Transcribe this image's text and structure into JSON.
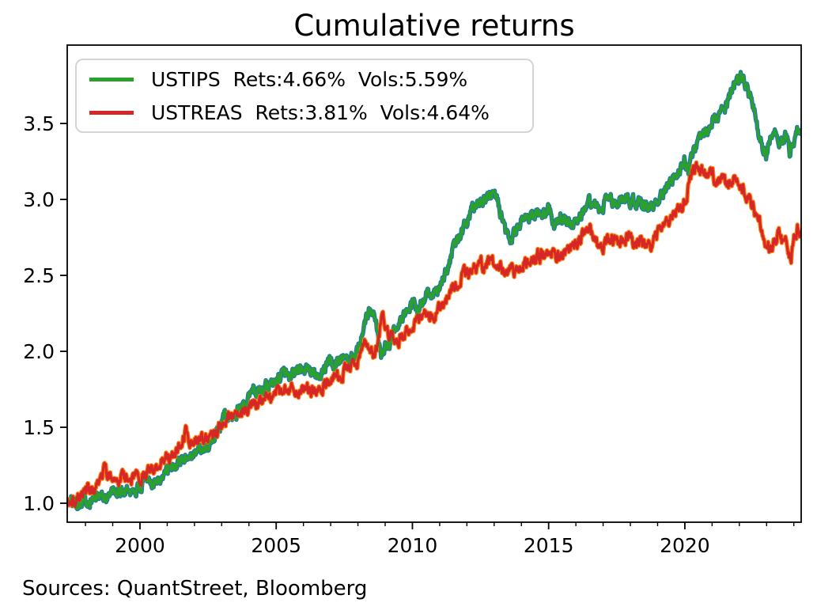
{
  "chart_data": {
    "type": "line",
    "title": "Cumulative returns",
    "xlabel": "",
    "ylabel": "",
    "legend_position": "upper left",
    "axes": {
      "xlim": [
        1997.33,
        2024.27
      ],
      "ylim": [
        0.875,
        4.016
      ],
      "xticks": [
        2000,
        2005,
        2010,
        2015,
        2020
      ],
      "xtick_labels": [
        "2000",
        "2005",
        "2010",
        "2015",
        "2020"
      ],
      "minor_xtick_start": 1998,
      "minor_xtick_end": 2024,
      "yticks": [
        1.0,
        1.5,
        2.0,
        2.5,
        3.0,
        3.5
      ],
      "ytick_labels": [
        "1.0",
        "1.5",
        "2.0",
        "2.5",
        "3.0",
        "3.5"
      ],
      "grid": false
    },
    "series": [
      {
        "name": "USTIPS",
        "legend_label": "USTIPS  Rets:4.66%  Vols:5.59%",
        "rets": "4.66%",
        "vols": "5.59%",
        "color": "#2ca02c",
        "underlay_color": "#1f77b4",
        "points": [
          [
            1997.33,
            1.0
          ],
          [
            1997.6,
            1.01
          ],
          [
            1997.9,
            1.02
          ],
          [
            1998.2,
            1.03
          ],
          [
            1998.5,
            1.045
          ],
          [
            1998.8,
            1.05
          ],
          [
            1999.0,
            1.065
          ],
          [
            1999.3,
            1.075
          ],
          [
            1999.6,
            1.085
          ],
          [
            1999.9,
            1.09
          ],
          [
            2000.0,
            1.1
          ],
          [
            2000.3,
            1.13
          ],
          [
            2000.6,
            1.16
          ],
          [
            2000.9,
            1.19
          ],
          [
            2001.2,
            1.23
          ],
          [
            2001.5,
            1.28
          ],
          [
            2001.8,
            1.32
          ],
          [
            2002.0,
            1.33
          ],
          [
            2002.3,
            1.36
          ],
          [
            2002.6,
            1.4
          ],
          [
            2002.8,
            1.45
          ],
          [
            2003.0,
            1.52
          ],
          [
            2003.2,
            1.58
          ],
          [
            2003.4,
            1.55
          ],
          [
            2003.6,
            1.62
          ],
          [
            2003.8,
            1.67
          ],
          [
            2004.0,
            1.72
          ],
          [
            2004.3,
            1.75
          ],
          [
            2004.6,
            1.77
          ],
          [
            2004.9,
            1.81
          ],
          [
            2005.1,
            1.84
          ],
          [
            2005.4,
            1.86
          ],
          [
            2005.7,
            1.87
          ],
          [
            2006.0,
            1.88
          ],
          [
            2006.3,
            1.87
          ],
          [
            2006.5,
            1.86
          ],
          [
            2006.8,
            1.9
          ],
          [
            2007.0,
            1.93
          ],
          [
            2007.3,
            1.94
          ],
          [
            2007.6,
            1.96
          ],
          [
            2007.9,
            1.99
          ],
          [
            2008.1,
            2.08
          ],
          [
            2008.25,
            2.2
          ],
          [
            2008.4,
            2.26
          ],
          [
            2008.55,
            2.21
          ],
          [
            2008.65,
            2.24
          ],
          [
            2008.75,
            2.08
          ],
          [
            2008.85,
            1.94
          ],
          [
            2009.0,
            2.02
          ],
          [
            2009.2,
            2.08
          ],
          [
            2009.4,
            2.16
          ],
          [
            2009.6,
            2.21
          ],
          [
            2009.8,
            2.24
          ],
          [
            2010.0,
            2.3
          ],
          [
            2010.2,
            2.28
          ],
          [
            2010.5,
            2.36
          ],
          [
            2010.8,
            2.39
          ],
          [
            2011.0,
            2.42
          ],
          [
            2011.2,
            2.5
          ],
          [
            2011.5,
            2.68
          ],
          [
            2011.7,
            2.74
          ],
          [
            2011.9,
            2.82
          ],
          [
            2012.1,
            2.9
          ],
          [
            2012.3,
            2.94
          ],
          [
            2012.5,
            2.97
          ],
          [
            2012.7,
            3.0
          ],
          [
            2012.9,
            3.05
          ],
          [
            2013.1,
            3.0
          ],
          [
            2013.3,
            2.86
          ],
          [
            2013.45,
            2.76
          ],
          [
            2013.65,
            2.74
          ],
          [
            2013.85,
            2.82
          ],
          [
            2014.0,
            2.87
          ],
          [
            2014.2,
            2.9
          ],
          [
            2014.45,
            2.87
          ],
          [
            2014.7,
            2.91
          ],
          [
            2015.0,
            2.93
          ],
          [
            2015.2,
            2.86
          ],
          [
            2015.45,
            2.89
          ],
          [
            2015.7,
            2.84
          ],
          [
            2015.9,
            2.83
          ],
          [
            2016.1,
            2.87
          ],
          [
            2016.3,
            2.93
          ],
          [
            2016.55,
            2.98
          ],
          [
            2016.75,
            2.94
          ],
          [
            2016.9,
            2.93
          ],
          [
            2017.1,
            2.97
          ],
          [
            2017.4,
            2.99
          ],
          [
            2017.7,
            3.01
          ],
          [
            2018.0,
            3.0
          ],
          [
            2018.2,
            2.97
          ],
          [
            2018.5,
            2.98
          ],
          [
            2018.8,
            2.94
          ],
          [
            2019.0,
            2.99
          ],
          [
            2019.3,
            3.08
          ],
          [
            2019.6,
            3.17
          ],
          [
            2019.8,
            3.2
          ],
          [
            2020.0,
            3.27
          ],
          [
            2020.15,
            3.17
          ],
          [
            2020.3,
            3.33
          ],
          [
            2020.5,
            3.38
          ],
          [
            2020.7,
            3.41
          ],
          [
            2020.95,
            3.47
          ],
          [
            2021.05,
            3.54
          ],
          [
            2021.15,
            3.5
          ],
          [
            2021.35,
            3.57
          ],
          [
            2021.55,
            3.63
          ],
          [
            2021.75,
            3.71
          ],
          [
            2021.95,
            3.8
          ],
          [
            2022.05,
            3.82
          ],
          [
            2022.15,
            3.77
          ],
          [
            2022.3,
            3.71
          ],
          [
            2022.45,
            3.64
          ],
          [
            2022.6,
            3.57
          ],
          [
            2022.72,
            3.44
          ],
          [
            2022.85,
            3.34
          ],
          [
            2023.0,
            3.28
          ],
          [
            2023.15,
            3.44
          ],
          [
            2023.3,
            3.43
          ],
          [
            2023.5,
            3.36
          ],
          [
            2023.7,
            3.42
          ],
          [
            2023.85,
            3.32
          ],
          [
            2024.0,
            3.39
          ],
          [
            2024.1,
            3.46
          ],
          [
            2024.27,
            3.45
          ]
        ]
      },
      {
        "name": "USTREAS",
        "legend_label": "USTREAS  Rets:3.81%  Vols:4.64%",
        "rets": "3.81%",
        "vols": "4.64%",
        "color": "#d62728",
        "underlay_color": "#ff7f0e",
        "points": [
          [
            1997.33,
            1.0
          ],
          [
            1997.6,
            1.035
          ],
          [
            1997.9,
            1.06
          ],
          [
            1998.2,
            1.09
          ],
          [
            1998.5,
            1.13
          ],
          [
            1998.7,
            1.21
          ],
          [
            1998.85,
            1.18
          ],
          [
            1999.05,
            1.19
          ],
          [
            1999.3,
            1.18
          ],
          [
            1999.55,
            1.17
          ],
          [
            1999.8,
            1.18
          ],
          [
            2000.05,
            1.18
          ],
          [
            2000.3,
            1.2
          ],
          [
            2000.6,
            1.23
          ],
          [
            2000.9,
            1.27
          ],
          [
            2001.2,
            1.32
          ],
          [
            2001.5,
            1.38
          ],
          [
            2001.7,
            1.47
          ],
          [
            2001.85,
            1.41
          ],
          [
            2002.05,
            1.41
          ],
          [
            2002.25,
            1.4
          ],
          [
            2002.45,
            1.42
          ],
          [
            2002.65,
            1.44
          ],
          [
            2002.85,
            1.48
          ],
          [
            2003.05,
            1.54
          ],
          [
            2003.2,
            1.58
          ],
          [
            2003.4,
            1.55
          ],
          [
            2003.6,
            1.59
          ],
          [
            2003.85,
            1.63
          ],
          [
            2004.05,
            1.66
          ],
          [
            2004.3,
            1.65
          ],
          [
            2004.6,
            1.68
          ],
          [
            2004.9,
            1.71
          ],
          [
            2005.1,
            1.73
          ],
          [
            2005.4,
            1.74
          ],
          [
            2005.7,
            1.75
          ],
          [
            2006.0,
            1.76
          ],
          [
            2006.3,
            1.74
          ],
          [
            2006.55,
            1.74
          ],
          [
            2006.8,
            1.78
          ],
          [
            2007.05,
            1.82
          ],
          [
            2007.3,
            1.84
          ],
          [
            2007.6,
            1.87
          ],
          [
            2007.9,
            1.91
          ],
          [
            2008.1,
            1.97
          ],
          [
            2008.3,
            2.06
          ],
          [
            2008.45,
            2.03
          ],
          [
            2008.6,
            1.98
          ],
          [
            2008.75,
            2.06
          ],
          [
            2008.88,
            2.26
          ],
          [
            2009.0,
            2.18
          ],
          [
            2009.1,
            2.13
          ],
          [
            2009.3,
            2.1
          ],
          [
            2009.5,
            2.08
          ],
          [
            2009.75,
            2.12
          ],
          [
            2010.0,
            2.18
          ],
          [
            2010.3,
            2.2
          ],
          [
            2010.6,
            2.25
          ],
          [
            2010.8,
            2.24
          ],
          [
            2011.0,
            2.28
          ],
          [
            2011.3,
            2.36
          ],
          [
            2011.5,
            2.44
          ],
          [
            2011.75,
            2.48
          ],
          [
            2012.0,
            2.52
          ],
          [
            2012.3,
            2.55
          ],
          [
            2012.6,
            2.57
          ],
          [
            2012.9,
            2.58
          ],
          [
            2013.1,
            2.56
          ],
          [
            2013.35,
            2.54
          ],
          [
            2013.6,
            2.52
          ],
          [
            2013.85,
            2.55
          ],
          [
            2014.1,
            2.58
          ],
          [
            2014.4,
            2.61
          ],
          [
            2014.7,
            2.64
          ],
          [
            2015.0,
            2.67
          ],
          [
            2015.2,
            2.63
          ],
          [
            2015.5,
            2.64
          ],
          [
            2015.8,
            2.67
          ],
          [
            2016.05,
            2.72
          ],
          [
            2016.3,
            2.76
          ],
          [
            2016.5,
            2.8
          ],
          [
            2016.7,
            2.72
          ],
          [
            2016.9,
            2.68
          ],
          [
            2017.1,
            2.71
          ],
          [
            2017.4,
            2.73
          ],
          [
            2017.7,
            2.74
          ],
          [
            2018.0,
            2.74
          ],
          [
            2018.2,
            2.71
          ],
          [
            2018.5,
            2.72
          ],
          [
            2018.8,
            2.69
          ],
          [
            2019.0,
            2.76
          ],
          [
            2019.3,
            2.84
          ],
          [
            2019.6,
            2.91
          ],
          [
            2019.8,
            2.93
          ],
          [
            2020.0,
            2.99
          ],
          [
            2020.12,
            3.08
          ],
          [
            2020.3,
            3.2
          ],
          [
            2020.5,
            3.22
          ],
          [
            2020.7,
            3.19
          ],
          [
            2020.9,
            3.15
          ],
          [
            2021.0,
            3.17
          ],
          [
            2021.2,
            3.1
          ],
          [
            2021.4,
            3.13
          ],
          [
            2021.6,
            3.1
          ],
          [
            2021.8,
            3.13
          ],
          [
            2021.95,
            3.14
          ],
          [
            2022.1,
            3.08
          ],
          [
            2022.3,
            3.02
          ],
          [
            2022.5,
            2.96
          ],
          [
            2022.7,
            2.88
          ],
          [
            2022.85,
            2.8
          ],
          [
            2023.0,
            2.72
          ],
          [
            2023.15,
            2.66
          ],
          [
            2023.3,
            2.72
          ],
          [
            2023.45,
            2.78
          ],
          [
            2023.6,
            2.72
          ],
          [
            2023.75,
            2.68
          ],
          [
            2023.9,
            2.63
          ],
          [
            2024.05,
            2.78
          ],
          [
            2024.15,
            2.82
          ],
          [
            2024.27,
            2.77
          ]
        ]
      }
    ]
  },
  "footer": {
    "sources": "Sources: QuantStreet, Bloomberg"
  }
}
